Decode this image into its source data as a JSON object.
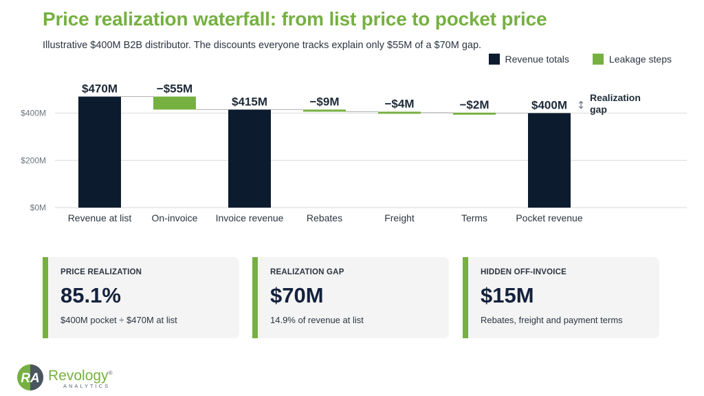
{
  "header": {
    "title": "Price realization waterfall: from list price to pocket price",
    "subtitle": "Illustrative $400M B2B distributor. The discounts everyone tracks explain only $55M of a $70M gap."
  },
  "legend": {
    "totals_label": "Revenue totals",
    "leakage_label": "Leakage steps"
  },
  "colors": {
    "total": "#0d1b2e",
    "leakage": "#76b041",
    "accent": "#76b041",
    "grid": "#d9d9d9"
  },
  "chart_data": {
    "type": "bar",
    "subtype": "waterfall",
    "categories": [
      "Revenue at list",
      "On-invoice",
      "Invoice revenue",
      "Rebates",
      "Freight",
      "Terms",
      "Pocket revenue"
    ],
    "values": [
      470,
      -55,
      415,
      -9,
      -4,
      -2,
      400
    ],
    "kinds": [
      "total",
      "step",
      "total",
      "step",
      "step",
      "step",
      "total"
    ],
    "data_labels": [
      "$470M",
      "−$55M",
      "$415M",
      "−$9M",
      "−$4M",
      "−$2M",
      "$400M"
    ],
    "y_ticks": [
      0,
      200,
      400
    ],
    "y_tick_labels": [
      "$0M",
      "$200M",
      "$400M"
    ],
    "ylim": [
      0,
      470
    ],
    "grid": true,
    "legend_position": "top-right",
    "annotation": {
      "line1": "Realization",
      "line2": "gap",
      "arrow": "↕"
    }
  },
  "cards": [
    {
      "label": "PRICE REALIZATION",
      "value": "85.1%",
      "note": "$400M pocket ÷ $470M at list"
    },
    {
      "label": "REALIZATION GAP",
      "value": "$70M",
      "note": "14.9% of revenue at list"
    },
    {
      "label": "HIDDEN OFF-INVOICE",
      "value": "$15M",
      "note": "Rebates, freight and payment terms"
    }
  ],
  "logo": {
    "name": "Revology",
    "reg": "®",
    "sub": "ANALYTICS",
    "icon": "revology-ra-logo-icon"
  }
}
